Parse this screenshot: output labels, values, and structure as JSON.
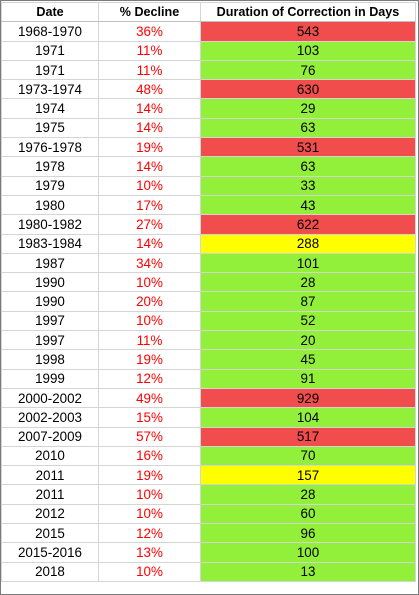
{
  "table": {
    "headers": [
      "Date",
      "% Decline",
      "Duration of Correction in Days"
    ],
    "rows": [
      {
        "date": "1968-1970",
        "decline": "36%",
        "duration": "543",
        "color": "red"
      },
      {
        "date": "1971",
        "decline": "11%",
        "duration": "103",
        "color": "green"
      },
      {
        "date": "1971",
        "decline": "11%",
        "duration": "76",
        "color": "green"
      },
      {
        "date": "1973-1974",
        "decline": "48%",
        "duration": "630",
        "color": "red"
      },
      {
        "date": "1974",
        "decline": "14%",
        "duration": "29",
        "color": "green"
      },
      {
        "date": "1975",
        "decline": "14%",
        "duration": "63",
        "color": "green"
      },
      {
        "date": "1976-1978",
        "decline": "19%",
        "duration": "531",
        "color": "red"
      },
      {
        "date": "1978",
        "decline": "14%",
        "duration": "63",
        "color": "green"
      },
      {
        "date": "1979",
        "decline": "10%",
        "duration": "33",
        "color": "green"
      },
      {
        "date": "1980",
        "decline": "17%",
        "duration": "43",
        "color": "green"
      },
      {
        "date": "1980-1982",
        "decline": "27%",
        "duration": "622",
        "color": "red"
      },
      {
        "date": "1983-1984",
        "decline": "14%",
        "duration": "288",
        "color": "yellow"
      },
      {
        "date": "1987",
        "decline": "34%",
        "duration": "101",
        "color": "green"
      },
      {
        "date": "1990",
        "decline": "10%",
        "duration": "28",
        "color": "green"
      },
      {
        "date": "1990",
        "decline": "20%",
        "duration": "87",
        "color": "green"
      },
      {
        "date": "1997",
        "decline": "10%",
        "duration": "52",
        "color": "green"
      },
      {
        "date": "1997",
        "decline": "11%",
        "duration": "20",
        "color": "green"
      },
      {
        "date": "1998",
        "decline": "19%",
        "duration": "45",
        "color": "green"
      },
      {
        "date": "1999",
        "decline": "12%",
        "duration": "91",
        "color": "green"
      },
      {
        "date": "2000-2002",
        "decline": "49%",
        "duration": "929",
        "color": "red"
      },
      {
        "date": "2002-2003",
        "decline": "15%",
        "duration": "104",
        "color": "green"
      },
      {
        "date": "2007-2009",
        "decline": "57%",
        "duration": "517",
        "color": "red"
      },
      {
        "date": "2010",
        "decline": "16%",
        "duration": "70",
        "color": "green"
      },
      {
        "date": "2011",
        "decline": "19%",
        "duration": "157",
        "color": "yellow"
      },
      {
        "date": "2011",
        "decline": "10%",
        "duration": "28",
        "color": "green"
      },
      {
        "date": "2012",
        "decline": "10%",
        "duration": "60",
        "color": "green"
      },
      {
        "date": "2015",
        "decline": "12%",
        "duration": "96",
        "color": "green"
      },
      {
        "date": "2015-2016",
        "decline": "13%",
        "duration": "100",
        "color": "green"
      },
      {
        "date": "2018",
        "decline": "10%",
        "duration": "13",
        "color": "green"
      }
    ]
  },
  "colors": {
    "green": "#92f03a",
    "red": "#f24d4d",
    "yellow": "#ffff00",
    "decline_text": "#ff0000"
  }
}
